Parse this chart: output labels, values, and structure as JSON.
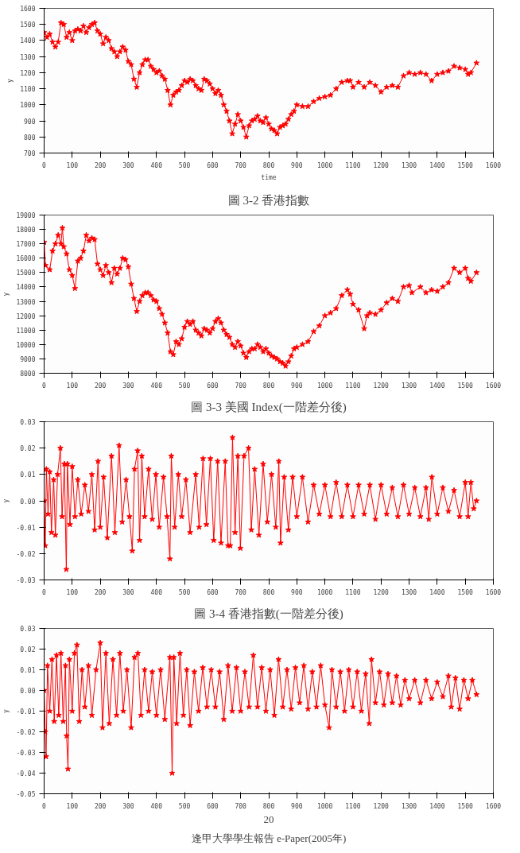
{
  "chart_data": [
    {
      "type": "line",
      "xlabel": "time",
      "ylabel": "y",
      "marker": "star",
      "grid": false,
      "color": "#ff0000",
      "x": [
        0,
        10,
        20,
        30,
        40,
        50,
        60,
        70,
        80,
        90,
        100,
        110,
        120,
        130,
        140,
        150,
        160,
        170,
        180,
        190,
        200,
        210,
        220,
        230,
        240,
        250,
        260,
        270,
        280,
        290,
        300,
        310,
        320,
        330,
        340,
        350,
        360,
        370,
        380,
        390,
        400,
        410,
        420,
        430,
        440,
        450,
        460,
        470,
        480,
        490,
        500,
        510,
        520,
        530,
        540,
        550,
        560,
        570,
        580,
        590,
        600,
        610,
        620,
        630,
        640,
        650,
        660,
        670,
        680,
        690,
        700,
        710,
        720,
        730,
        740,
        750,
        760,
        770,
        780,
        790,
        800,
        810,
        820,
        830,
        840,
        850,
        860,
        870,
        880,
        890,
        900,
        920,
        940,
        960,
        980,
        1000,
        1020,
        1040,
        1060,
        1080,
        1090,
        1100,
        1120,
        1140,
        1160,
        1180,
        1200,
        1220,
        1240,
        1260,
        1280,
        1300,
        1320,
        1340,
        1360,
        1380,
        1400,
        1420,
        1440,
        1460,
        1480,
        1500,
        1510,
        1520,
        1540
      ],
      "values": [
        1450,
        1420,
        1440,
        1390,
        1360,
        1390,
        1510,
        1500,
        1420,
        1450,
        1400,
        1460,
        1470,
        1460,
        1490,
        1450,
        1480,
        1500,
        1510,
        1460,
        1440,
        1380,
        1420,
        1400,
        1350,
        1330,
        1300,
        1330,
        1360,
        1340,
        1270,
        1250,
        1160,
        1110,
        1200,
        1250,
        1280,
        1280,
        1240,
        1220,
        1200,
        1210,
        1180,
        1160,
        1090,
        1000,
        1060,
        1080,
        1090,
        1120,
        1150,
        1140,
        1160,
        1150,
        1120,
        1100,
        1090,
        1160,
        1150,
        1130,
        1100,
        1070,
        1090,
        1060,
        1000,
        960,
        900,
        820,
        880,
        940,
        900,
        860,
        800,
        870,
        900,
        910,
        930,
        900,
        890,
        920,
        880,
        850,
        840,
        820,
        860,
        870,
        880,
        910,
        940,
        960,
        1000,
        990,
        990,
        1020,
        1040,
        1050,
        1060,
        1100,
        1140,
        1150,
        1150,
        1110,
        1140,
        1110,
        1140,
        1120,
        1080,
        1110,
        1120,
        1110,
        1180,
        1200,
        1190,
        1200,
        1190,
        1150,
        1190,
        1200,
        1210,
        1240,
        1230,
        1220,
        1190,
        1200,
        1260
      ],
      "xlim": [
        0,
        1600
      ],
      "xticks": [
        0,
        100,
        200,
        300,
        400,
        500,
        600,
        700,
        800,
        900,
        1000,
        1100,
        1200,
        1300,
        1400,
        1500,
        1600
      ],
      "ylim": [
        700,
        1600
      ],
      "yticks": [
        700,
        800,
        900,
        1000,
        1100,
        1200,
        1300,
        1400,
        1500,
        1600
      ]
    },
    {
      "type": "line",
      "title": "圖 3-2 香港指數",
      "ylabel": "y",
      "marker": "star",
      "grid": false,
      "color": "#ff0000",
      "x": [
        0,
        5,
        20,
        30,
        40,
        50,
        60,
        65,
        70,
        80,
        90,
        100,
        110,
        120,
        130,
        140,
        150,
        160,
        170,
        180,
        190,
        200,
        210,
        220,
        230,
        240,
        250,
        260,
        270,
        280,
        290,
        300,
        310,
        320,
        330,
        340,
        350,
        360,
        370,
        380,
        390,
        400,
        410,
        420,
        430,
        440,
        450,
        460,
        470,
        480,
        490,
        500,
        510,
        520,
        530,
        540,
        550,
        560,
        570,
        580,
        590,
        600,
        610,
        620,
        630,
        640,
        650,
        660,
        670,
        680,
        690,
        700,
        710,
        720,
        730,
        740,
        750,
        760,
        770,
        780,
        790,
        800,
        810,
        820,
        830,
        840,
        850,
        860,
        870,
        880,
        890,
        900,
        920,
        940,
        960,
        980,
        1000,
        1020,
        1040,
        1060,
        1080,
        1090,
        1100,
        1120,
        1140,
        1150,
        1160,
        1180,
        1200,
        1220,
        1240,
        1260,
        1280,
        1300,
        1310,
        1340,
        1360,
        1380,
        1400,
        1420,
        1440,
        1460,
        1480,
        1500,
        1510,
        1520,
        1540
      ],
      "values": [
        17100,
        15500,
        15200,
        16500,
        17000,
        17600,
        17000,
        18100,
        16800,
        16300,
        15200,
        14800,
        13900,
        15800,
        16000,
        16500,
        17600,
        17200,
        17400,
        17300,
        15600,
        15200,
        14800,
        15500,
        15000,
        14300,
        15300,
        14900,
        15300,
        16000,
        15900,
        15400,
        14200,
        13200,
        12300,
        13000,
        13400,
        13600,
        13600,
        13400,
        13100,
        13000,
        12500,
        12100,
        11500,
        10800,
        9500,
        9300,
        10200,
        10000,
        10400,
        11200,
        11600,
        11400,
        11600,
        11000,
        10800,
        10600,
        11100,
        11000,
        10800,
        11100,
        11600,
        11800,
        11500,
        11000,
        10700,
        10500,
        10000,
        9800,
        10200,
        9900,
        9400,
        9100,
        9500,
        9700,
        9700,
        10000,
        9800,
        9500,
        9700,
        9400,
        9200,
        9100,
        9000,
        8800,
        8700,
        8500,
        8800,
        9200,
        9700,
        9800,
        10000,
        10200,
        10900,
        11300,
        12000,
        12200,
        12500,
        13400,
        13800,
        13500,
        12800,
        12400,
        11100,
        12000,
        12200,
        12100,
        12400,
        12900,
        13200,
        13000,
        14000,
        14100,
        13600,
        14000,
        13600,
        13800,
        13700,
        14000,
        14300,
        15300,
        15000,
        15300,
        14600,
        14400,
        15000
      ],
      "xlim": [
        0,
        1600
      ],
      "xticks": [
        0,
        100,
        200,
        300,
        400,
        500,
        600,
        700,
        800,
        900,
        1000,
        1100,
        1200,
        1300,
        1400,
        1500,
        1600
      ],
      "ylim": [
        8000,
        19000
      ],
      "yticks": [
        8000,
        9000,
        10000,
        11000,
        12000,
        13000,
        14000,
        15000,
        16000,
        17000,
        18000,
        19000
      ]
    },
    {
      "type": "line",
      "title": "圖 3-3 美國 Index(一階差分後)",
      "ylabel": "y",
      "marker": "star",
      "grid": false,
      "color": "#ff0000",
      "x": [
        0,
        4,
        8,
        14,
        20,
        26,
        34,
        40,
        48,
        58,
        64,
        72,
        79,
        83,
        92,
        100,
        110,
        120,
        132,
        145,
        158,
        170,
        180,
        192,
        200,
        212,
        225,
        240,
        252,
        267,
        278,
        292,
        304,
        314,
        322,
        333,
        340,
        348,
        358,
        372,
        385,
        398,
        410,
        425,
        438,
        448,
        453,
        465,
        478,
        490,
        505,
        520,
        540,
        552,
        566,
        578,
        592,
        604,
        618,
        630,
        645,
        655,
        663,
        671,
        680,
        690,
        699,
        712,
        728,
        738,
        750,
        765,
        780,
        795,
        810,
        825,
        836,
        842,
        855,
        870,
        885,
        900,
        920,
        940,
        960,
        980,
        1000,
        1020,
        1040,
        1060,
        1080,
        1100,
        1120,
        1140,
        1160,
        1180,
        1200,
        1220,
        1240,
        1260,
        1280,
        1300,
        1320,
        1340,
        1360,
        1370,
        1381,
        1400,
        1420,
        1440,
        1460,
        1480,
        1500,
        1510,
        1520,
        1530,
        1540
      ],
      "values": [
        0.0,
        -0.017,
        0.012,
        -0.005,
        0.011,
        -0.012,
        0.008,
        -0.013,
        0.01,
        0.02,
        -0.006,
        0.014,
        -0.026,
        0.014,
        -0.009,
        0.013,
        -0.006,
        0.008,
        -0.005,
        0.006,
        -0.004,
        0.01,
        -0.011,
        0.015,
        -0.01,
        0.009,
        -0.014,
        0.017,
        -0.012,
        0.021,
        -0.008,
        0.008,
        -0.006,
        -0.019,
        0.012,
        0.019,
        -0.015,
        0.017,
        -0.006,
        0.012,
        -0.007,
        0.01,
        -0.01,
        0.009,
        -0.006,
        -0.022,
        0.017,
        -0.01,
        0.01,
        -0.006,
        0.008,
        -0.012,
        0.01,
        -0.01,
        0.016,
        -0.009,
        0.016,
        -0.015,
        0.015,
        -0.016,
        0.015,
        -0.017,
        -0.017,
        0.024,
        -0.012,
        0.017,
        -0.018,
        0.017,
        0.02,
        -0.011,
        0.012,
        -0.013,
        0.014,
        -0.008,
        0.01,
        -0.01,
        0.015,
        -0.016,
        0.009,
        -0.011,
        0.009,
        -0.006,
        0.009,
        -0.008,
        0.006,
        -0.005,
        0.006,
        -0.006,
        0.007,
        -0.006,
        0.006,
        -0.006,
        0.006,
        -0.005,
        0.006,
        -0.007,
        0.006,
        -0.005,
        0.005,
        -0.006,
        0.006,
        -0.005,
        0.005,
        -0.006,
        0.005,
        -0.007,
        0.009,
        -0.005,
        0.005,
        -0.004,
        0.004,
        -0.006,
        0.007,
        -0.006,
        0.007,
        -0.003,
        0.0
      ],
      "xlim": [
        0,
        1600
      ],
      "xticks": [
        0,
        100,
        200,
        300,
        400,
        500,
        600,
        700,
        800,
        900,
        1000,
        1100,
        1200,
        1300,
        1400,
        1500,
        1600
      ],
      "ylim": [
        -0.03,
        0.03
      ],
      "yticks": [
        -0.03,
        -0.02,
        -0.01,
        {
          "value": 0,
          "label": "0.00"
        },
        0.01,
        0.02,
        0.03
      ]
    },
    {
      "type": "line",
      "title": "圖 3-4 香港指數(一階差分後)",
      "ylabel": "y",
      "marker": "star",
      "grid": false,
      "color": "#ff0000",
      "annotations": [
        "20",
        "逢甲大學學生報告 e-Paper(2005年)"
      ],
      "x": [
        0,
        4,
        7,
        12,
        20,
        28,
        36,
        44,
        52,
        60,
        68,
        76,
        80,
        85,
        90,
        100,
        108,
        117,
        125,
        135,
        145,
        158,
        170,
        185,
        200,
        208,
        220,
        232,
        245,
        258,
        270,
        282,
        295,
        310,
        322,
        334,
        345,
        358,
        372,
        385,
        400,
        415,
        430,
        448,
        456,
        462,
        472,
        484,
        496,
        508,
        520,
        535,
        550,
        565,
        580,
        595,
        610,
        625,
        640,
        655,
        670,
        685,
        700,
        715,
        730,
        745,
        760,
        775,
        790,
        805,
        820,
        835,
        850,
        865,
        880,
        895,
        910,
        925,
        940,
        955,
        970,
        985,
        1000,
        1015,
        1025,
        1040,
        1055,
        1070,
        1085,
        1100,
        1115,
        1130,
        1145,
        1158,
        1166,
        1180,
        1195,
        1210,
        1225,
        1240,
        1255,
        1270,
        1285,
        1300,
        1320,
        1340,
        1360,
        1380,
        1400,
        1420,
        1440,
        1450,
        1465,
        1480,
        1495,
        1510,
        1525,
        1540
      ],
      "values": [
        0.0,
        -0.02,
        -0.032,
        0.012,
        -0.01,
        0.015,
        -0.015,
        0.017,
        -0.012,
        0.018,
        -0.015,
        0.012,
        -0.022,
        -0.038,
        0.015,
        -0.01,
        0.018,
        0.022,
        -0.015,
        0.01,
        -0.008,
        0.012,
        -0.012,
        0.01,
        0.023,
        -0.018,
        0.018,
        -0.016,
        0.015,
        -0.012,
        0.018,
        -0.01,
        0.01,
        -0.018,
        0.016,
        0.018,
        -0.012,
        0.01,
        -0.01,
        0.009,
        -0.012,
        0.01,
        -0.014,
        0.016,
        -0.04,
        0.016,
        -0.016,
        0.018,
        -0.012,
        0.01,
        -0.017,
        0.009,
        -0.01,
        0.011,
        -0.008,
        0.01,
        -0.008,
        0.009,
        -0.014,
        0.012,
        -0.01,
        0.011,
        -0.01,
        0.009,
        -0.008,
        0.017,
        -0.008,
        0.011,
        -0.01,
        0.01,
        -0.012,
        0.015,
        -0.008,
        0.01,
        -0.009,
        0.011,
        -0.006,
        0.012,
        -0.009,
        0.009,
        -0.008,
        0.012,
        -0.007,
        -0.018,
        0.01,
        -0.008,
        0.009,
        -0.01,
        0.01,
        -0.008,
        0.009,
        -0.01,
        0.008,
        -0.016,
        0.015,
        -0.006,
        0.009,
        -0.007,
        0.008,
        -0.006,
        0.007,
        -0.007,
        0.005,
        -0.004,
        0.005,
        -0.006,
        0.005,
        -0.004,
        0.004,
        -0.003,
        0.007,
        -0.008,
        0.006,
        -0.009,
        0.005,
        -0.004,
        0.005,
        -0.002
      ],
      "xlim": [
        0,
        1600
      ],
      "xticks": [
        0,
        100,
        200,
        300,
        400,
        500,
        600,
        700,
        800,
        900,
        1000,
        1100,
        1200,
        1300,
        1400,
        1500,
        1600
      ],
      "ylim": [
        -0.05,
        0.03
      ],
      "yticks": [
        -0.05,
        -0.04,
        -0.03,
        -0.02,
        -0.01,
        {
          "value": 0,
          "label": "0.00"
        },
        0.01,
        0.02,
        0.03
      ]
    }
  ]
}
